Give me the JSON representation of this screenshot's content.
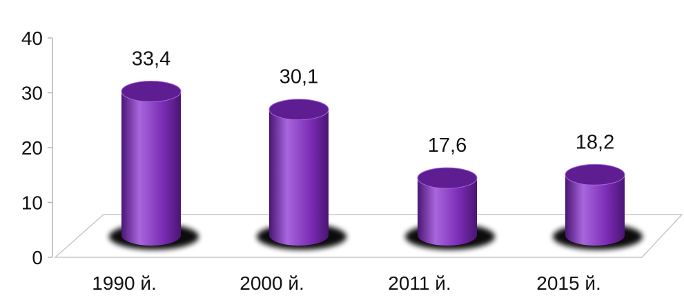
{
  "chart_data": {
    "type": "bar",
    "style": "3d-cylinder",
    "categories": [
      "1990 й.",
      "2000 й.",
      "2011 й.",
      "2015 й."
    ],
    "values": [
      33.4,
      30.1,
      17.6,
      18.2
    ],
    "value_labels": [
      "33,4",
      "30,1",
      "17,6",
      "18,2"
    ],
    "yticks": [
      0,
      10,
      20,
      30,
      40
    ],
    "ylim": [
      0,
      40
    ],
    "grid": false,
    "legend": "none",
    "bar_color": "#7B2CB5",
    "bar_color_dark": "#4A1573",
    "bar_color_light": "#A866DD",
    "bar_top_color": "#5E1E92",
    "shadow_color": "#000000"
  }
}
